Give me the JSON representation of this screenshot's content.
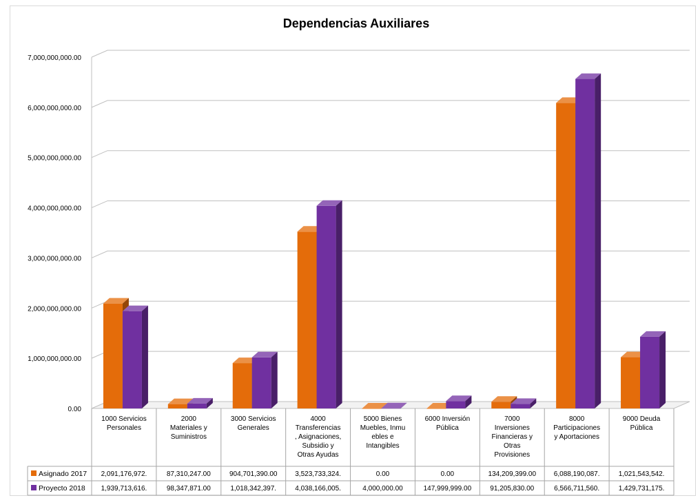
{
  "chart_data": {
    "type": "bar",
    "title": "Dependencias Auxiliares",
    "ylim": [
      0,
      7000000000
    ],
    "yticks": [
      "0.00",
      "1,000,000,000.00",
      "2,000,000,000.00",
      "3,000,000,000.00",
      "4,000,000,000.00",
      "5,000,000,000.00",
      "6,000,000,000.00",
      "7,000,000,000.00"
    ],
    "grid": true,
    "legend": "bottom-table",
    "categories": [
      [
        "1000 Servicios",
        "Personales"
      ],
      [
        "2000",
        "Materiales y",
        "Suministros"
      ],
      [
        "3000 Servicios",
        "Generales"
      ],
      [
        "4000",
        "Transferencias",
        ", Asignaciones,",
        "Subsidio y",
        "Otras Ayudas"
      ],
      [
        "5000 Bienes",
        "Muebles, Inmu",
        "ebles e",
        "Intangibles"
      ],
      [
        "6000 Inversión",
        "Pública"
      ],
      [
        "7000",
        "Inversiones",
        "Financieras y",
        "Otras",
        "Provisiones"
      ],
      [
        "8000",
        "Participaciones",
        "y Aportaciones"
      ],
      [
        "9000 Deuda",
        "Pública"
      ]
    ],
    "series": [
      {
        "name": "Asignado 2017",
        "color": "#e46c0a",
        "values": [
          2091176972,
          87310247,
          904701390,
          3523733324,
          0,
          0,
          134209399,
          6088190087,
          1021543542
        ],
        "labels": [
          "2,091,176,972.",
          "87,310,247.00",
          "904,701,390.00",
          "3,523,733,324.",
          "0.00",
          "0.00",
          "134,209,399.00",
          "6,088,190,087.",
          "1,021,543,542."
        ]
      },
      {
        "name": "Proyecto 2018",
        "color": "#7030a0",
        "values": [
          1939713616,
          98347871,
          1018342397,
          4038166005,
          4000000,
          147999999,
          91205830,
          6566711560,
          1429731175
        ],
        "labels": [
          "1,939,713,616.",
          "98,347,871.00",
          "1,018,342,397.",
          "4,038,166,005.",
          "4,000,000.00",
          "147,999,999.00",
          "91,205,830.00",
          "6,566,711,560.",
          "1,429,731,175."
        ]
      }
    ]
  }
}
